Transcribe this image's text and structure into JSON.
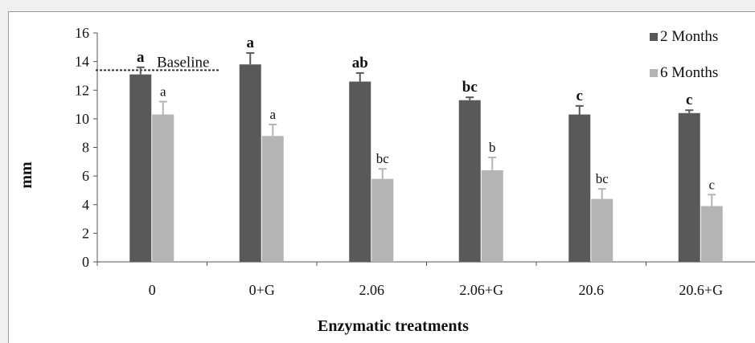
{
  "chart_data": {
    "type": "bar",
    "title": "",
    "xlabel": "Enzymatic treatments",
    "ylabel": "mm",
    "ylim": [
      0,
      16
    ],
    "yticks": [
      0,
      2,
      4,
      6,
      8,
      10,
      12,
      14,
      16
    ],
    "grid": false,
    "legend_position": "top-right",
    "categories": [
      "0",
      "0+G",
      "2.06",
      "2.06+G",
      "20.6",
      "20.6+G"
    ],
    "series": [
      {
        "name": "2 Months",
        "color": "#595959",
        "values": [
          13.1,
          13.8,
          12.6,
          11.3,
          10.3,
          10.4
        ],
        "errors": [
          0.5,
          0.8,
          0.6,
          0.2,
          0.6,
          0.2
        ],
        "letters": [
          "a",
          "a",
          "ab",
          "bc",
          "c",
          "c"
        ]
      },
      {
        "name": "6 Months",
        "color": "#b4b4b4",
        "values": [
          10.3,
          8.8,
          5.8,
          6.4,
          4.4,
          3.9
        ],
        "errors": [
          0.9,
          0.8,
          0.7,
          0.9,
          0.7,
          0.8
        ],
        "letters": [
          "a",
          "a",
          "bc",
          "b",
          "bc",
          "c"
        ]
      }
    ],
    "reference_line": {
      "label": "Baseline",
      "value": 13.4
    }
  }
}
